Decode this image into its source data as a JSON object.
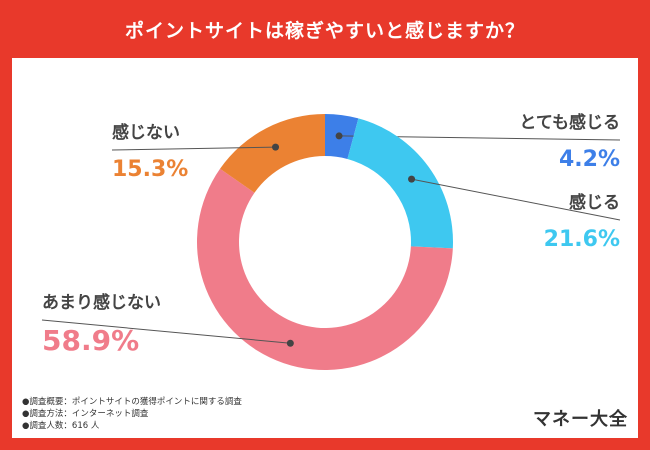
{
  "title": "ポイントサイトは稼ぎやすいと感じますか？",
  "chart_data": {
    "type": "pie",
    "donut": true,
    "title": "ポイントサイトは稼ぎやすいと感じますか？",
    "unit": "%",
    "slices": [
      {
        "label": "とても感じる",
        "value": 4.2,
        "display": "4.2%",
        "color": "#3d7fe8"
      },
      {
        "label": "感じる",
        "value": 21.6,
        "display": "21.6%",
        "color": "#3ec8f0"
      },
      {
        "label": "あまり感じない",
        "value": 58.9,
        "display": "58.9%",
        "color": "#f07c8a"
      },
      {
        "label": "感じない",
        "value": 15.3,
        "display": "15.3%",
        "color": "#eb8233"
      }
    ]
  },
  "notes": [
    "●調査概要：ポイントサイトの獲得ポイントに関する調査",
    "●調査方法：インターネット調査",
    "●調査人数：616 人"
  ],
  "brand": "マネー大全"
}
